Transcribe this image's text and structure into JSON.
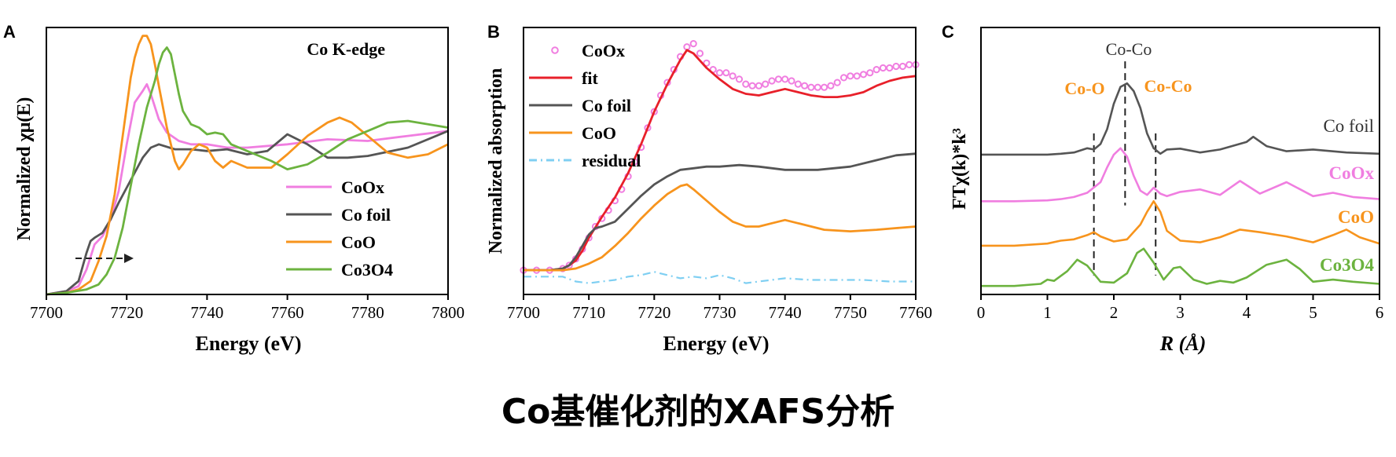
{
  "caption": "Co基催化剂的XAFS分析",
  "colors": {
    "cooX": "#f07ee0",
    "cofoil": "#555555",
    "coo": "#f7941d",
    "co3o4": "#6cb33f",
    "fit": "#e8202a",
    "residual": "#7fcff2"
  },
  "chart_data": [
    {
      "panel": "A",
      "type": "line",
      "annotation": "Co K-edge",
      "xlabel": "Energy (eV)",
      "ylabel": "Normalized χμ(E)",
      "xlim": [
        7700,
        7800
      ],
      "xticks": [
        7700,
        7720,
        7740,
        7760,
        7780,
        7800
      ],
      "ylim": [
        0,
        1.6
      ],
      "legend": "bottom-right",
      "series": [
        {
          "name": "CoOx",
          "color_key": "cooX",
          "x": [
            7700,
            7705,
            7708,
            7710,
            7712,
            7714,
            7716,
            7718,
            7720,
            7722,
            7724,
            7725,
            7726,
            7728,
            7730,
            7733,
            7736,
            7740,
            7745,
            7750,
            7760,
            7770,
            7780,
            7790,
            7800
          ],
          "y": [
            0,
            0.02,
            0.05,
            0.15,
            0.3,
            0.35,
            0.45,
            0.62,
            0.9,
            1.15,
            1.22,
            1.26,
            1.2,
            1.05,
            0.97,
            0.92,
            0.9,
            0.9,
            0.88,
            0.88,
            0.9,
            0.93,
            0.92,
            0.95,
            0.98
          ]
        },
        {
          "name": "Co foil",
          "color_key": "cofoil",
          "x": [
            7700,
            7705,
            7708,
            7710,
            7711,
            7712,
            7714,
            7716,
            7718,
            7720,
            7722,
            7724,
            7726,
            7728,
            7732,
            7736,
            7740,
            7745,
            7750,
            7755,
            7760,
            7765,
            7770,
            7775,
            7780,
            7790,
            7800
          ],
          "y": [
            0,
            0.02,
            0.08,
            0.25,
            0.32,
            0.34,
            0.37,
            0.45,
            0.55,
            0.64,
            0.73,
            0.82,
            0.88,
            0.9,
            0.87,
            0.87,
            0.86,
            0.87,
            0.84,
            0.86,
            0.96,
            0.9,
            0.82,
            0.82,
            0.83,
            0.88,
            0.98
          ]
        },
        {
          "name": "CoO",
          "color_key": "coo",
          "x": [
            7700,
            7705,
            7708,
            7711,
            7713,
            7715,
            7717,
            7719,
            7721,
            7722,
            7723,
            7724,
            7725,
            7726,
            7727,
            7728,
            7730,
            7732,
            7733,
            7734,
            7736,
            7738,
            7740,
            7742,
            7744,
            7746,
            7750,
            7756,
            7760,
            7765,
            7770,
            7773,
            7776,
            7780,
            7785,
            7790,
            7795,
            7800
          ],
          "y": [
            0,
            0.01,
            0.03,
            0.08,
            0.2,
            0.35,
            0.6,
            0.95,
            1.3,
            1.42,
            1.5,
            1.55,
            1.55,
            1.5,
            1.38,
            1.25,
            1.0,
            0.8,
            0.75,
            0.78,
            0.86,
            0.9,
            0.88,
            0.8,
            0.76,
            0.8,
            0.76,
            0.76,
            0.84,
            0.95,
            1.03,
            1.06,
            1.03,
            0.95,
            0.85,
            0.82,
            0.84,
            0.9
          ]
        },
        {
          "name": "Co3O4",
          "color_key": "co3o4",
          "x": [
            7700,
            7705,
            7710,
            7713,
            7715,
            7717,
            7719,
            7721,
            7723,
            7725,
            7727,
            7728,
            7729,
            7730,
            7731,
            7732,
            7733,
            7734,
            7736,
            7738,
            7740,
            7742,
            7744,
            7746,
            7750,
            7756,
            7760,
            7765,
            7770,
            7775,
            7780,
            7785,
            7790,
            7795,
            7800
          ],
          "y": [
            0,
            0.01,
            0.03,
            0.06,
            0.12,
            0.22,
            0.4,
            0.65,
            0.9,
            1.12,
            1.28,
            1.38,
            1.45,
            1.48,
            1.44,
            1.32,
            1.2,
            1.1,
            1.02,
            1.0,
            0.96,
            0.97,
            0.96,
            0.9,
            0.86,
            0.8,
            0.75,
            0.78,
            0.85,
            0.93,
            0.98,
            1.03,
            1.04,
            1.02,
            1.0
          ]
        }
      ]
    },
    {
      "panel": "B",
      "type": "line",
      "xlabel": "Energy (eV)",
      "ylabel": "Normalized absorption",
      "xlim": [
        7700,
        7760
      ],
      "xticks": [
        7700,
        7710,
        7720,
        7730,
        7740,
        7750,
        7760
      ],
      "ylim": [
        -0.15,
        1.5
      ],
      "legend": "top-left",
      "series": [
        {
          "name": "CoOx",
          "color_key": "cooX",
          "style": "markers",
          "x": [
            7700,
            7702,
            7704,
            7706,
            7707,
            7708,
            7709,
            7710,
            7711,
            7712,
            7713,
            7714,
            7715,
            7716,
            7717,
            7718,
            7719,
            7720,
            7721,
            7722,
            7723,
            7724,
            7725,
            7726,
            7727,
            7728,
            7729,
            7730,
            7731,
            7732,
            7733,
            7734,
            7735,
            7736,
            7737,
            7738,
            7739,
            7740,
            7741,
            7742,
            7743,
            7744,
            7745,
            7746,
            7747,
            7748,
            7749,
            7750,
            7751,
            7752,
            7753,
            7754,
            7755,
            7756,
            7757,
            7758,
            7759,
            7760
          ],
          "y": [
            0,
            0,
            0,
            0.01,
            0.03,
            0.07,
            0.13,
            0.2,
            0.27,
            0.32,
            0.37,
            0.43,
            0.5,
            0.58,
            0.67,
            0.76,
            0.88,
            0.98,
            1.08,
            1.16,
            1.24,
            1.32,
            1.38,
            1.4,
            1.34,
            1.28,
            1.24,
            1.22,
            1.22,
            1.2,
            1.18,
            1.15,
            1.14,
            1.14,
            1.15,
            1.17,
            1.18,
            1.18,
            1.17,
            1.15,
            1.14,
            1.13,
            1.13,
            1.13,
            1.14,
            1.16,
            1.19,
            1.2,
            1.2,
            1.21,
            1.22,
            1.24,
            1.25,
            1.25,
            1.26,
            1.26,
            1.27,
            1.27
          ]
        },
        {
          "name": "fit",
          "color_key": "fit",
          "x": [
            7700,
            7704,
            7706,
            7707,
            7708,
            7709,
            7710,
            7712,
            7714,
            7716,
            7718,
            7720,
            7722,
            7724,
            7725,
            7726,
            7728,
            7730,
            7732,
            7734,
            7736,
            7738,
            7740,
            7742,
            7744,
            7746,
            7748,
            7750,
            7752,
            7754,
            7756,
            7758,
            7760
          ],
          "y": [
            0,
            0,
            0.01,
            0.03,
            0.06,
            0.12,
            0.2,
            0.33,
            0.45,
            0.6,
            0.78,
            0.98,
            1.15,
            1.3,
            1.36,
            1.34,
            1.25,
            1.18,
            1.12,
            1.09,
            1.08,
            1.1,
            1.12,
            1.1,
            1.08,
            1.07,
            1.07,
            1.08,
            1.1,
            1.14,
            1.17,
            1.19,
            1.2
          ]
        },
        {
          "name": "Co foil",
          "color_key": "cofoil",
          "x": [
            7700,
            7704,
            7706,
            7707,
            7708,
            7709,
            7710,
            7711,
            7712,
            7714,
            7716,
            7718,
            7720,
            7722,
            7724,
            7726,
            7728,
            7730,
            7733,
            7736,
            7740,
            7745,
            7750,
            7754,
            7757,
            7760
          ],
          "y": [
            0,
            0,
            0.01,
            0.03,
            0.08,
            0.15,
            0.22,
            0.26,
            0.27,
            0.3,
            0.38,
            0.46,
            0.53,
            0.58,
            0.62,
            0.63,
            0.64,
            0.64,
            0.65,
            0.64,
            0.62,
            0.62,
            0.64,
            0.68,
            0.71,
            0.72
          ]
        },
        {
          "name": "CoO",
          "color_key": "coo",
          "x": [
            7700,
            7704,
            7706,
            7708,
            7710,
            7712,
            7714,
            7716,
            7718,
            7720,
            7722,
            7724,
            7725,
            7726,
            7728,
            7730,
            7732,
            7734,
            7736,
            7738,
            7740,
            7742,
            7746,
            7750,
            7754,
            7757,
            7760
          ],
          "y": [
            0,
            0,
            0,
            0.01,
            0.04,
            0.08,
            0.15,
            0.23,
            0.32,
            0.4,
            0.47,
            0.52,
            0.53,
            0.5,
            0.43,
            0.36,
            0.3,
            0.27,
            0.27,
            0.29,
            0.31,
            0.29,
            0.25,
            0.24,
            0.25,
            0.26,
            0.27
          ]
        },
        {
          "name": "residual",
          "color_key": "residual",
          "style": "dashdot",
          "x": [
            7700,
            7703,
            7706,
            7708,
            7710,
            7712,
            7714,
            7716,
            7718,
            7720,
            7722,
            7724,
            7726,
            7728,
            7730,
            7732,
            7734,
            7736,
            7740,
            7744,
            7748,
            7752,
            7756,
            7760
          ],
          "y": [
            -0.04,
            -0.04,
            -0.04,
            -0.07,
            -0.08,
            -0.07,
            -0.06,
            -0.04,
            -0.03,
            -0.01,
            -0.03,
            -0.05,
            -0.04,
            -0.05,
            -0.03,
            -0.05,
            -0.08,
            -0.07,
            -0.05,
            -0.06,
            -0.06,
            -0.06,
            -0.07,
            -0.07
          ]
        }
      ]
    },
    {
      "panel": "C",
      "type": "line",
      "xlabel": "R (Å)",
      "ylabel": "FTχ(k)*k³",
      "xlim": [
        0,
        6
      ],
      "xticks": [
        0,
        1,
        2,
        3,
        4,
        5,
        6
      ],
      "ylim": [
        -0.2,
        6.1
      ],
      "annotations": [
        "Co-Co",
        "Co-O",
        "Co-Co"
      ],
      "dashed_lines_x": [
        1.7,
        2.17,
        2.63
      ],
      "series": [
        {
          "name": "Co foil",
          "color_key": "cofoil",
          "offset": 3.1,
          "x": [
            0,
            0.5,
            1.0,
            1.2,
            1.4,
            1.5,
            1.6,
            1.7,
            1.8,
            1.9,
            2.0,
            2.1,
            2.2,
            2.3,
            2.4,
            2.5,
            2.6,
            2.7,
            2.8,
            3.0,
            3.3,
            3.6,
            4.0,
            4.1,
            4.3,
            4.6,
            5.0,
            5.5,
            6.0
          ],
          "y": [
            0,
            0,
            0,
            0.02,
            0.05,
            0.1,
            0.15,
            0.12,
            0.25,
            0.6,
            1.2,
            1.6,
            1.68,
            1.5,
            1.1,
            0.5,
            0.15,
            0.02,
            0.12,
            0.14,
            0.05,
            0.12,
            0.3,
            0.42,
            0.2,
            0.08,
            0.12,
            0.05,
            0.02
          ]
        },
        {
          "name": "CoOx",
          "color_key": "cooX",
          "offset": 2.0,
          "x": [
            0,
            0.5,
            1.0,
            1.2,
            1.4,
            1.6,
            1.8,
            1.9,
            2.0,
            2.1,
            2.2,
            2.3,
            2.4,
            2.5,
            2.6,
            2.7,
            2.8,
            3.0,
            3.3,
            3.6,
            3.9,
            4.2,
            4.6,
            5.0,
            5.3,
            5.6,
            6.0
          ],
          "y": [
            0,
            0,
            0.02,
            0.05,
            0.1,
            0.2,
            0.45,
            0.8,
            1.1,
            1.25,
            1.05,
            0.6,
            0.25,
            0.15,
            0.32,
            0.18,
            0.12,
            0.22,
            0.28,
            0.15,
            0.48,
            0.18,
            0.45,
            0.12,
            0.2,
            0.1,
            0.05
          ]
        },
        {
          "name": "CoO",
          "color_key": "coo",
          "offset": 0.95,
          "x": [
            0,
            0.5,
            1.0,
            1.2,
            1.4,
            1.6,
            1.7,
            1.8,
            2.0,
            2.2,
            2.4,
            2.5,
            2.6,
            2.7,
            2.8,
            3.0,
            3.3,
            3.6,
            3.9,
            4.2,
            4.6,
            5.0,
            5.3,
            5.5,
            5.7,
            6.0
          ],
          "y": [
            0,
            0,
            0.05,
            0.12,
            0.15,
            0.25,
            0.32,
            0.22,
            0.1,
            0.15,
            0.5,
            0.8,
            1.05,
            0.8,
            0.35,
            0.12,
            0.08,
            0.2,
            0.38,
            0.32,
            0.22,
            0.08,
            0.25,
            0.38,
            0.2,
            0.05
          ]
        },
        {
          "name": "Co3O4",
          "color_key": "co3o4",
          "offset": 0.0,
          "x": [
            0,
            0.5,
            0.9,
            1.0,
            1.1,
            1.3,
            1.45,
            1.6,
            1.8,
            2.0,
            2.2,
            2.35,
            2.45,
            2.6,
            2.75,
            2.9,
            3.0,
            3.2,
            3.4,
            3.6,
            3.8,
            4.0,
            4.3,
            4.6,
            4.8,
            5.0,
            5.3,
            5.6,
            6.0
          ],
          "y": [
            0,
            0,
            0.05,
            0.15,
            0.12,
            0.35,
            0.62,
            0.48,
            0.1,
            0.08,
            0.3,
            0.78,
            0.88,
            0.55,
            0.15,
            0.42,
            0.45,
            0.15,
            0.05,
            0.12,
            0.08,
            0.2,
            0.5,
            0.62,
            0.4,
            0.1,
            0.15,
            0.1,
            0.05
          ]
        }
      ]
    }
  ]
}
